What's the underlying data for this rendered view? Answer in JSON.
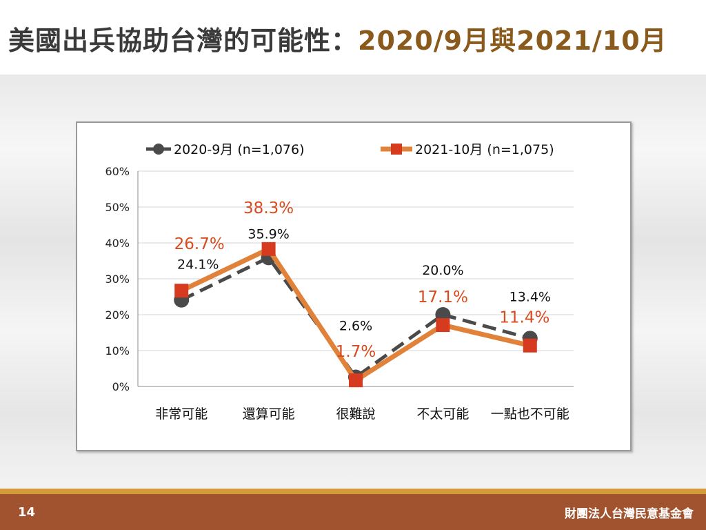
{
  "header": {
    "title_main": "美國出兵協助台灣的可能性：",
    "title_highlight_1": "2020/9月",
    "title_join": "與",
    "title_highlight_2": "2021/10月"
  },
  "footer": {
    "page_number": "14",
    "organization": "財團法人台灣民意基金會"
  },
  "chart_data": {
    "type": "line",
    "categories": [
      "非常可能",
      "還算可能",
      "很難說",
      "不太可能",
      "一點也不可能"
    ],
    "series": [
      {
        "name": "2020-9月 (n=1,076)",
        "values": [
          24.1,
          35.9,
          2.6,
          20.0,
          13.4
        ],
        "labels": [
          "24.1%",
          "35.9%",
          "2.6%",
          "20.0%",
          "13.4%"
        ],
        "color": "#4a4a4a",
        "style": "dashed",
        "marker": "circle"
      },
      {
        "name": "2021-10月 (n=1,075)",
        "values": [
          26.7,
          38.3,
          1.7,
          17.1,
          11.4
        ],
        "labels": [
          "26.7%",
          "38.3%",
          "1.7%",
          "17.1%",
          "11.4%"
        ],
        "color": "#e0823a",
        "marker_color": "#d63b1f",
        "label_color": "#d94a1e",
        "style": "solid",
        "marker": "square"
      }
    ],
    "y_ticks": [
      "0%",
      "10%",
      "20%",
      "30%",
      "40%",
      "50%",
      "60%"
    ],
    "ylim": [
      0,
      60
    ],
    "grid": true,
    "legend_position": "top"
  }
}
